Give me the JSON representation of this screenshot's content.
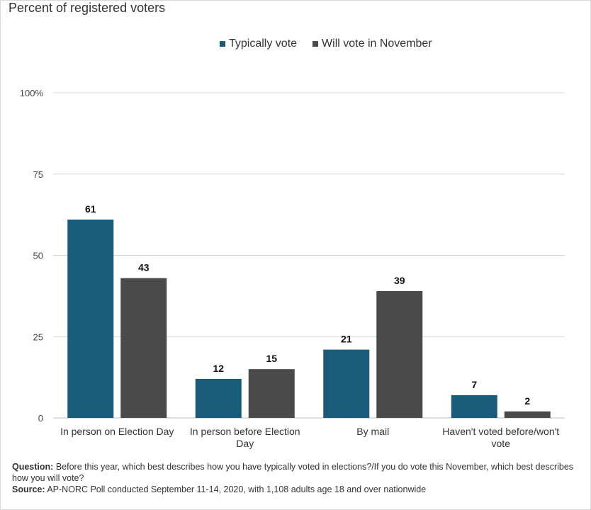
{
  "subtitle": "Percent of registered voters",
  "legend": [
    {
      "label": "Typically vote",
      "color": "#1a5a7a"
    },
    {
      "label": "Will vote in November",
      "color": "#4a4a4a"
    }
  ],
  "chart_data": {
    "type": "bar",
    "categories": [
      [
        "In person on Election Day"
      ],
      [
        "In person before Election",
        "Day"
      ],
      [
        "By mail"
      ],
      [
        "Haven't voted before/won't",
        "vote"
      ]
    ],
    "series": [
      {
        "name": "Typically vote",
        "color": "#1a5a7a",
        "values": [
          61,
          12,
          21,
          7
        ]
      },
      {
        "name": "Will vote in November",
        "color": "#4a4a4a",
        "values": [
          43,
          15,
          39,
          2
        ]
      }
    ],
    "ylim": [
      0,
      100
    ],
    "yticks": [
      {
        "value": 0,
        "label": "0"
      },
      {
        "value": 25,
        "label": "25"
      },
      {
        "value": 50,
        "label": "50"
      },
      {
        "value": 75,
        "label": "75"
      },
      {
        "value": 100,
        "label": "100%"
      }
    ],
    "grid": true,
    "legend_position": "top"
  },
  "footnote": {
    "question_label": "Question:",
    "question_text": " Before this year, which best describes how you have typically voted in elections?/If you do vote this November, which best describes how you will vote?",
    "source_label": "Source:",
    "source_text": " AP-NORC Poll conducted September 11-14, 2020, with 1,108 adults age 18 and over nationwide"
  }
}
